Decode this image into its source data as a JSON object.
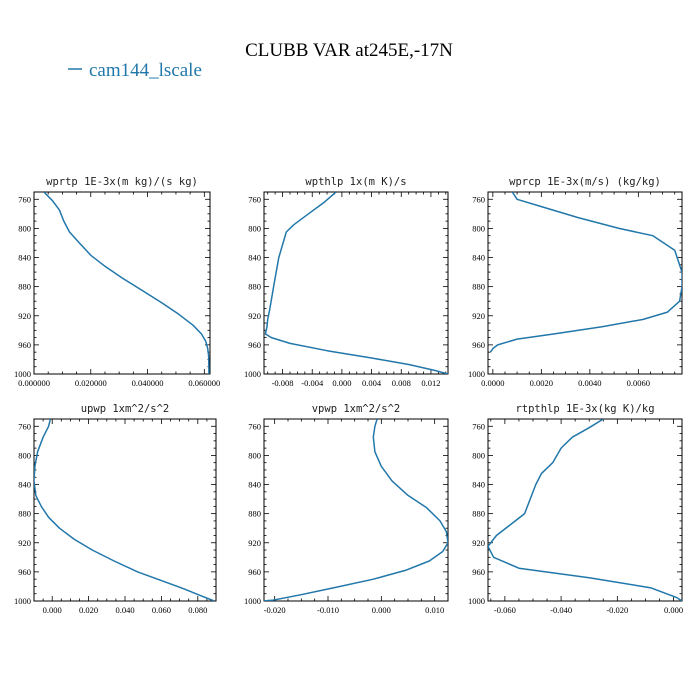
{
  "figure": {
    "title": "CLUBB VAR at245E,-17N",
    "legend": {
      "label": "cam144_lscale",
      "color": "#2277aa"
    }
  },
  "chart_data": [
    {
      "type": "line",
      "title": "wprtp  1E-3x(m kg)/(s kg)",
      "xlim": [
        0.0,
        0.062
      ],
      "ylim": [
        1000,
        750
      ],
      "xticks": [
        0.0,
        0.02,
        0.04,
        0.06
      ],
      "xtick_labels": [
        "0.000000",
        "0.020000",
        "0.040000",
        "0.060000"
      ],
      "yticks": [
        760,
        800,
        840,
        880,
        920,
        960,
        1000
      ],
      "series": [
        {
          "x": [
            0.0035,
            0.0065,
            0.009,
            0.0105,
            0.0125,
            0.016,
            0.02,
            0.025,
            0.031,
            0.038,
            0.045,
            0.051,
            0.056,
            0.059,
            0.0605,
            0.0612,
            0.0615,
            0.0616,
            0.0616
          ],
          "y": [
            750,
            762,
            775,
            790,
            805,
            820,
            837,
            852,
            868,
            885,
            902,
            918,
            933,
            945,
            955,
            965,
            975,
            990,
            1000
          ]
        }
      ]
    },
    {
      "type": "line",
      "title": "wpthlp  1x(m K)/s",
      "xlim": [
        -0.0105,
        0.0143
      ],
      "ylim": [
        1000,
        750
      ],
      "xticks": [
        -0.008,
        -0.004,
        0.0,
        0.004,
        0.008,
        0.012
      ],
      "xtick_labels": [
        "-0.008",
        "-0.004",
        "0.000",
        "0.004",
        "0.008",
        "0.012"
      ],
      "yticks": [
        760,
        800,
        840,
        880,
        920,
        960,
        1000
      ],
      "series": [
        {
          "x": [
            -0.0008,
            -0.0025,
            -0.0045,
            -0.0065,
            -0.0075,
            -0.0085,
            -0.0092,
            -0.0097,
            -0.01,
            -0.0101,
            -0.0102,
            -0.0103,
            -0.0095,
            -0.007,
            -0.002,
            0.004,
            0.009,
            0.0125,
            0.0143
          ],
          "y": [
            750,
            765,
            780,
            795,
            805,
            840,
            880,
            910,
            925,
            935,
            940,
            945,
            950,
            958,
            968,
            978,
            987,
            995,
            1000
          ]
        }
      ]
    },
    {
      "type": "line",
      "title": "wprcp  1E-3x(m/s) (kg/kg)",
      "xlim": [
        -0.0002,
        0.0078
      ],
      "ylim": [
        1000,
        750
      ],
      "xticks": [
        0.0,
        0.002,
        0.004,
        0.006
      ],
      "xtick_labels": [
        "0.0000",
        "0.0020",
        "0.0040",
        "0.0060"
      ],
      "yticks": [
        760,
        800,
        840,
        880,
        920,
        960,
        1000
      ],
      "series": [
        {
          "x": [
            0.0008,
            0.001,
            0.002,
            0.0035,
            0.0052,
            0.0066,
            0.0075,
            0.0078,
            0.0078,
            0.0077,
            0.0072,
            0.0062,
            0.0045,
            0.0025,
            0.001,
            0.0002,
            0.0,
            -0.0001
          ],
          "y": [
            750,
            760,
            770,
            785,
            800,
            810,
            830,
            860,
            880,
            900,
            915,
            925,
            935,
            945,
            952,
            960,
            965,
            970
          ]
        }
      ]
    },
    {
      "type": "line",
      "title": "upwp  1xm^2/s^2",
      "xlim": [
        -0.01,
        0.09
      ],
      "ylim": [
        1000,
        750
      ],
      "xticks": [
        0.0,
        0.02,
        0.04,
        0.06,
        0.08
      ],
      "xtick_labels": [
        "0.000",
        "0.020",
        "0.040",
        "0.060",
        "0.080"
      ],
      "yticks": [
        760,
        800,
        840,
        880,
        920,
        960,
        1000
      ],
      "series": [
        {
          "x": [
            -0.001,
            -0.002,
            -0.005,
            -0.008,
            -0.0095,
            -0.01,
            -0.009,
            -0.006,
            -0.002,
            0.004,
            0.012,
            0.022,
            0.034,
            0.047,
            0.06,
            0.072,
            0.082,
            0.089
          ],
          "y": [
            750,
            760,
            775,
            795,
            815,
            835,
            855,
            870,
            885,
            900,
            915,
            930,
            945,
            960,
            972,
            983,
            993,
            1000
          ]
        }
      ]
    },
    {
      "type": "line",
      "title": "vpwp  1xm^2/s^2",
      "xlim": [
        -0.022,
        0.0125
      ],
      "ylim": [
        1000,
        750
      ],
      "xticks": [
        -0.02,
        -0.01,
        0.0,
        0.01
      ],
      "xtick_labels": [
        "-0.020",
        "-0.010",
        "0.000",
        "0.010"
      ],
      "yticks": [
        760,
        800,
        840,
        880,
        920,
        960,
        1000
      ],
      "series": [
        {
          "x": [
            -0.0008,
            -0.0012,
            -0.0015,
            -0.0012,
            0.0,
            0.002,
            0.005,
            0.0085,
            0.011,
            0.0122,
            0.0125,
            0.0115,
            0.009,
            0.0045,
            -0.0015,
            -0.009,
            -0.0155,
            -0.0205,
            -0.0222
          ],
          "y": [
            750,
            760,
            775,
            795,
            815,
            835,
            855,
            872,
            890,
            905,
            920,
            932,
            945,
            958,
            970,
            982,
            992,
            999,
            1000
          ]
        }
      ]
    },
    {
      "type": "line",
      "title": "rtpthlp  1E-3x(kg K)/kg",
      "xlim": [
        -0.066,
        0.003
      ],
      "ylim": [
        1000,
        750
      ],
      "xticks": [
        -0.06,
        -0.04,
        -0.02,
        0.0
      ],
      "xtick_labels": [
        "-0.060",
        "-0.040",
        "-0.020",
        "0.000"
      ],
      "yticks": [
        760,
        800,
        840,
        880,
        920,
        960,
        1000
      ],
      "series": [
        {
          "x": [
            -0.025,
            -0.03,
            -0.036,
            -0.04,
            -0.043,
            -0.047,
            -0.049,
            -0.051,
            -0.053,
            -0.058,
            -0.063,
            -0.066,
            -0.064,
            -0.055,
            -0.03,
            -0.008,
            0.001,
            0.003
          ],
          "y": [
            750,
            762,
            775,
            790,
            810,
            825,
            840,
            860,
            880,
            895,
            910,
            925,
            940,
            955,
            968,
            982,
            995,
            1000
          ]
        }
      ]
    }
  ]
}
